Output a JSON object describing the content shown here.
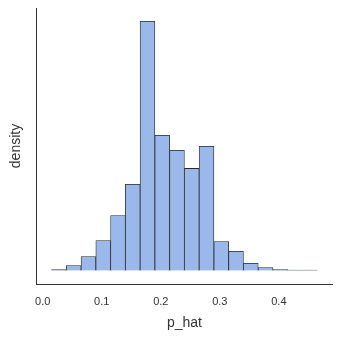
{
  "chart_data": {
    "type": "histogram",
    "x_label": "p_hat",
    "y_label": "density",
    "bins": [
      0.015,
      0.04,
      0.065,
      0.09,
      0.115,
      0.14,
      0.165,
      0.19,
      0.215,
      0.24,
      0.265,
      0.29,
      0.315,
      0.34,
      0.365,
      0.39,
      0.415,
      0.44,
      0.465
    ],
    "values": [
      0.04,
      0.2,
      0.57,
      1.22,
      2.24,
      3.51,
      10.16,
      5.51,
      4.9,
      4.16,
      5.06,
      1.18,
      0.78,
      0.29,
      0.12,
      0.04,
      0.02,
      0.02
    ],
    "color": "#9ab8ea",
    "xlim": [
      -0.01,
      0.49
    ],
    "xticks": [
      {
        "value": 0,
        "label": "0.0"
      },
      0.1,
      0.2,
      0.3,
      0.4
    ],
    "ylim": [
      -0.55,
      10.7
    ],
    "tick_labels": "x",
    "grid": false
  }
}
